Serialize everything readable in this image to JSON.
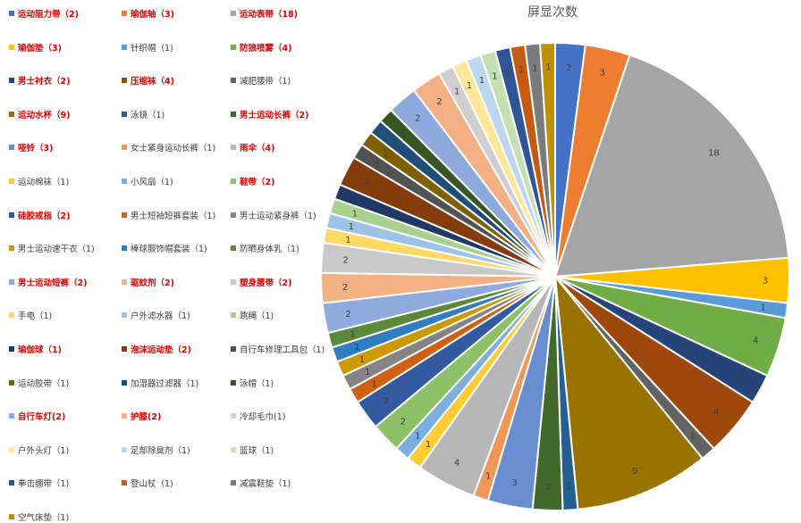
{
  "chart_data": {
    "type": "pie",
    "title": "屏显次数",
    "start_from": "top",
    "direction": "clockwise",
    "slices": [
      {
        "label": "运动阻力带（2)",
        "value": 2,
        "color": "#4472C4",
        "highlight": true
      },
      {
        "label": "瑜伽轴（3)",
        "value": 3,
        "color": "#ED7D31",
        "highlight": true
      },
      {
        "label": "运动表带（18)",
        "value": 18,
        "color": "#A5A5A5",
        "highlight": true
      },
      {
        "label": "瑜伽垫（3)",
        "value": 3,
        "color": "#FFC000",
        "highlight": true
      },
      {
        "label": "针织帽（1)",
        "value": 1,
        "color": "#5B9BD5",
        "highlight": false
      },
      {
        "label": "防狼喷雾（4)",
        "value": 4,
        "color": "#70AD47",
        "highlight": true
      },
      {
        "label": "男士衬衣（2)",
        "value": 2,
        "color": "#264478",
        "highlight": true
      },
      {
        "label": "压缩袜（4)",
        "value": 4,
        "color": "#9E480E",
        "highlight": true
      },
      {
        "label": "减肥腰带（1)",
        "value": 1,
        "color": "#636363",
        "highlight": false
      },
      {
        "label": "运动水杯（9)",
        "value": 9,
        "color": "#997300",
        "highlight": true
      },
      {
        "label": "泳镜（1)",
        "value": 1,
        "color": "#255E91",
        "highlight": false
      },
      {
        "label": "男士运动长裤（2)",
        "value": 2,
        "color": "#43682B",
        "highlight": true
      },
      {
        "label": "哑铃（3)",
        "value": 3,
        "color": "#698ED0",
        "highlight": true
      },
      {
        "label": "女士紧身运动长裤（1)",
        "value": 1,
        "color": "#F1975A",
        "highlight": false
      },
      {
        "label": "雨伞（4)",
        "value": 4,
        "color": "#B7B7B7",
        "highlight": true
      },
      {
        "label": "运动棉袜（1)",
        "value": 1,
        "color": "#FFCD33",
        "highlight": false
      },
      {
        "label": "小风扇（1)",
        "value": 1,
        "color": "#7CAFDD",
        "highlight": false
      },
      {
        "label": "鞋带（2)",
        "value": 2,
        "color": "#8CC168",
        "highlight": true
      },
      {
        "label": "硅胶戒指（2)",
        "value": 2,
        "color": "#335AA1",
        "highlight": true
      },
      {
        "label": "男士短袖短裤套装（1)",
        "value": 1,
        "color": "#D26012",
        "highlight": false
      },
      {
        "label": "男士运动紧身裤（1)",
        "value": 1,
        "color": "#848484",
        "highlight": false
      },
      {
        "label": "男士运动速干衣（1)",
        "value": 1,
        "color": "#CC9A00",
        "highlight": false
      },
      {
        "label": "棒球服饰帽套装（1)",
        "value": 1,
        "color": "#327DC2",
        "highlight": false
      },
      {
        "label": "防晒身体乳（1)",
        "value": 1,
        "color": "#5A8A39",
        "highlight": false
      },
      {
        "label": "男士运动短裤（2)",
        "value": 2,
        "color": "#8FAADC",
        "highlight": true
      },
      {
        "label": "驱蚊剂（2)",
        "value": 2,
        "color": "#F4B183",
        "highlight": true
      },
      {
        "label": "塑身腰带（2)",
        "value": 2,
        "color": "#C9C9C9",
        "highlight": true
      },
      {
        "label": "手电（1)",
        "value": 1,
        "color": "#FFD966",
        "highlight": false
      },
      {
        "label": "户外滤水器（1)",
        "value": 1,
        "color": "#9DC3E6",
        "highlight": false
      },
      {
        "label": "跳绳（1)",
        "value": 1,
        "color": "#A9D18E",
        "highlight": false
      },
      {
        "label": "瑜伽球（1)",
        "value": 1,
        "color": "#1F3864",
        "highlight": true
      },
      {
        "label": "泡沫运动垫（2)",
        "value": 2,
        "color": "#843C0C",
        "highlight": true
      },
      {
        "label": "自行车修理工具包（1)",
        "value": 1,
        "color": "#525252",
        "highlight": false
      },
      {
        "label": "运动胶带（1)",
        "value": 1,
        "color": "#7F6000",
        "highlight": false
      },
      {
        "label": "加湿器过滤器（1)",
        "value": 1,
        "color": "#1F4E79",
        "highlight": false
      },
      {
        "label": "泳帽（1)",
        "value": 1,
        "color": "#375623",
        "highlight": false
      },
      {
        "label": "自行车灯(2)",
        "value": 2,
        "color": "#8EA9DB",
        "highlight": true
      },
      {
        "label": "护膝(2)",
        "value": 2,
        "color": "#F4B084",
        "highlight": true
      },
      {
        "label": "冷却毛巾(1)",
        "value": 1,
        "color": "#D0CECE",
        "highlight": false
      },
      {
        "label": "户外头灯（1)",
        "value": 1,
        "color": "#FFE699",
        "highlight": false
      },
      {
        "label": "足部除臭剂（1)",
        "value": 1,
        "color": "#BDD7EE",
        "highlight": false
      },
      {
        "label": "篮球（1)",
        "value": 1,
        "color": "#C5E0B4",
        "highlight": false
      },
      {
        "label": "拳击绷带（1)",
        "value": 1,
        "color": "#2F5597",
        "highlight": false
      },
      {
        "label": "登山杖（1)",
        "value": 1,
        "color": "#C55A11",
        "highlight": false
      },
      {
        "label": "减震鞋垫（1)",
        "value": 1,
        "color": "#7B7B7B",
        "highlight": false
      },
      {
        "label": "空气床垫（1)",
        "value": 1,
        "color": "#BF9000",
        "highlight": false
      }
    ]
  }
}
